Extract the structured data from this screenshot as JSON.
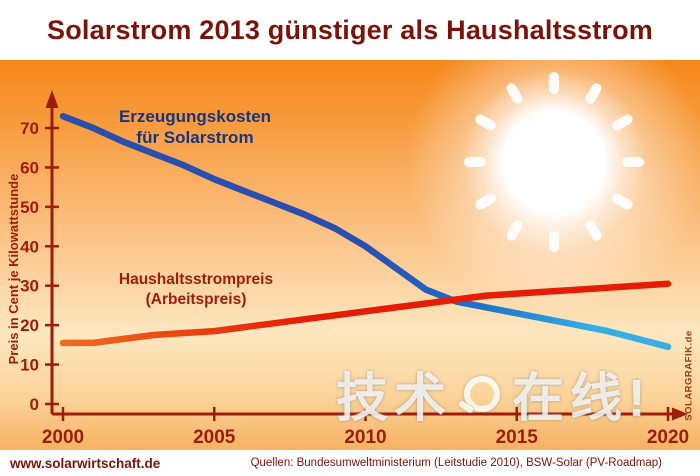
{
  "title": "Solarstrom 2013 günstiger als Haushaltsstrom",
  "watermark": {
    "part1": "技术",
    "part2": "在线!"
  },
  "credit_vertical": "SOLARGRAFIK.de",
  "footer": {
    "website": "www.solarwirtschaft.de",
    "sources": "Quellen: Bundesumweltministerium (Leitstudie 2010), BSW-Solar (PV-Roadmap)"
  },
  "colors": {
    "title": "#7a130b",
    "axis": "#9e1c0a",
    "solar_label": "#17357f",
    "household_label": "#9e1c0a",
    "solar_line_start": "#2a4db0",
    "solar_line_mid": "#1e74cc",
    "solar_line_end": "#38ade4",
    "household_line_start": "#ef6b1e",
    "household_line_end": "#e51d06",
    "background_top": "#f5871a",
    "background_mid": "#fde7c0",
    "background_bottom": "#f6b262",
    "sun": "#ffffff"
  },
  "chart_data": {
    "type": "line",
    "title": "Solarstrom 2013 günstiger als Haushaltsstrom",
    "xlabel": "",
    "ylabel": "Preis in Cent je Kilowattstunde",
    "xlim": [
      2000,
      2020
    ],
    "ylim": [
      0,
      78
    ],
    "grid": false,
    "legend_position": "none",
    "y_ticks": [
      0,
      10,
      20,
      30,
      40,
      50,
      60,
      70
    ],
    "x_ticks": [
      2000,
      2005,
      2010,
      2015,
      2020
    ],
    "x": [
      2000,
      2001,
      2002,
      2003,
      2004,
      2005,
      2006,
      2007,
      2008,
      2009,
      2010,
      2011,
      2012,
      2013,
      2014,
      2015,
      2016,
      2017,
      2018,
      2019,
      2020
    ],
    "series": [
      {
        "id": "solar",
        "name": "Erzeugungskosten für Solarstrom",
        "label_lines": "Erzeugungskosten\nfür Solarstrom",
        "values": [
          73,
          70,
          66.5,
          63.5,
          60.5,
          57,
          54,
          51,
          48,
          44.5,
          40,
          34.5,
          29,
          26,
          24.5,
          23,
          21.5,
          20,
          18.5,
          16.5,
          14.5
        ]
      },
      {
        "id": "household",
        "name": "Haushaltsstrompreis (Arbeitspreis)",
        "label_lines": "Haushaltsstrompreis\n(Arbeitspreis)",
        "values": [
          15.5,
          15.5,
          16.5,
          17.5,
          18,
          18.5,
          19.5,
          20.5,
          21.5,
          22.5,
          23.5,
          24.5,
          25.5,
          26.5,
          27.5,
          28,
          28.5,
          29,
          29.5,
          30,
          30.5
        ]
      }
    ],
    "annotation": "Lines cross between 2012 and 2013 at about 26 ct/kWh"
  }
}
